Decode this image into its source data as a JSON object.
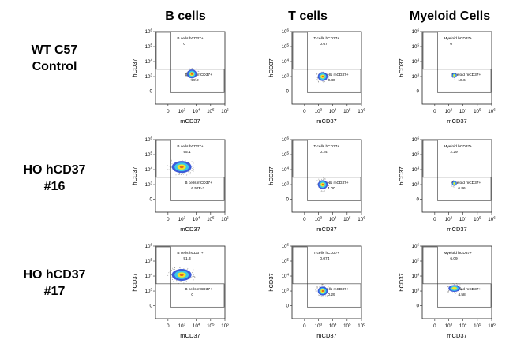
{
  "columns": [
    "B cells",
    "T cells",
    "Myeloid Cells"
  ],
  "rows": [
    {
      "line1": "WT C57",
      "line2": "Control"
    },
    {
      "line1": "HO hCD37",
      "line2": "#16"
    },
    {
      "line1": "HO hCD37",
      "line2": "#17"
    }
  ],
  "axes": {
    "xlabel": "mCD37",
    "ylabel": "hCD37",
    "ticks": [
      {
        "base": "0",
        "exp": ""
      },
      {
        "base": "10",
        "exp": "3"
      },
      {
        "base": "10",
        "exp": "4"
      },
      {
        "base": "10",
        "exp": "5"
      },
      {
        "base": "10",
        "exp": "6"
      }
    ]
  },
  "colors": {
    "density_low": "#2a4bd6",
    "density_mid": "#3cc8e8",
    "density_high": "#f2e62a",
    "density_peak": "#e8641e",
    "gate": "#333333"
  },
  "chart_data": {
    "type": "scatter",
    "scale": "biexponential",
    "ylim": [
      0,
      1000000
    ],
    "xlim": [
      0,
      1000000
    ],
    "plots": [
      {
        "row": 0,
        "col": 0,
        "gates": [
          {
            "name": "B cells hCD37+",
            "value": "0"
          },
          {
            "name": "B cells mCD37+",
            "value": "99.2"
          }
        ],
        "population": {
          "x": 5000,
          "y": 1500,
          "shape": "compact"
        }
      },
      {
        "row": 0,
        "col": 1,
        "gates": [
          {
            "name": "T cells hCD37+",
            "value": "0.67"
          },
          {
            "name": "T cells mCD37+",
            "value": "0.80"
          }
        ],
        "population": {
          "x": 2000,
          "y": 1000,
          "shape": "compact"
        }
      },
      {
        "row": 0,
        "col": 2,
        "gates": [
          {
            "name": "Myeloid hCD37+",
            "value": "0"
          },
          {
            "name": "Myeloid mCD37+",
            "value": "10.6"
          }
        ],
        "population": {
          "x": 2500,
          "y": 1200,
          "shape": "small"
        }
      },
      {
        "row": 1,
        "col": 0,
        "gates": [
          {
            "name": "B cells hCD37+",
            "value": "95.1"
          },
          {
            "name": "B cells mCD37+",
            "value": "6.57E-3"
          }
        ],
        "population": {
          "x": 900,
          "y": 15000,
          "shape": "wide"
        }
      },
      {
        "row": 1,
        "col": 1,
        "gates": [
          {
            "name": "T cells hCD37+",
            "value": "0.24"
          },
          {
            "name": "T cells mCD37+",
            "value": "1.00"
          }
        ],
        "population": {
          "x": 2000,
          "y": 1000,
          "shape": "compact"
        }
      },
      {
        "row": 1,
        "col": 2,
        "gates": [
          {
            "name": "Myeloid hCD37+",
            "value": "2.29"
          },
          {
            "name": "Myeloid mCD37+",
            "value": "6.86"
          }
        ],
        "population": {
          "x": 2500,
          "y": 1200,
          "shape": "small"
        }
      },
      {
        "row": 2,
        "col": 0,
        "gates": [
          {
            "name": "B cells hCD37+",
            "value": "91.3"
          },
          {
            "name": "B cells mCD37+",
            "value": "0"
          }
        ],
        "population": {
          "x": 900,
          "y": 12000,
          "shape": "wide"
        }
      },
      {
        "row": 2,
        "col": 1,
        "gates": [
          {
            "name": "T cells hCD37+",
            "value": "0.074"
          },
          {
            "name": "T cells mCD37+",
            "value": "0.29"
          }
        ],
        "population": {
          "x": 2000,
          "y": 1000,
          "shape": "compact"
        }
      },
      {
        "row": 2,
        "col": 2,
        "gates": [
          {
            "name": "Myeloid hCD37+",
            "value": "6.09"
          },
          {
            "name": "Myeloid mCD37+",
            "value": "4.58"
          }
        ],
        "population": {
          "x": 2500,
          "y": 1500,
          "shape": "elongated"
        }
      }
    ]
  }
}
